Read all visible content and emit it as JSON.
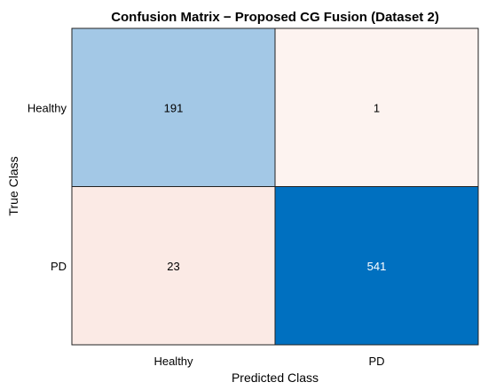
{
  "chart_data": {
    "type": "heatmap",
    "title": "Confusion Matrix − Proposed CG Fusion (Dataset 2)",
    "xlabel": "Predicted Class",
    "ylabel": "True Class",
    "x_categories": [
      "Healthy",
      "PD"
    ],
    "y_categories": [
      "Healthy",
      "PD"
    ],
    "values": [
      [
        191,
        1
      ],
      [
        23,
        541
      ]
    ],
    "cell_colors": [
      [
        "#a3c8e6",
        "#fdf3f0"
      ],
      [
        "#fbeae5",
        "#0070c0"
      ]
    ],
    "cell_text_colors": [
      [
        "#000000",
        "#000000"
      ],
      [
        "#000000",
        "#ffffff"
      ]
    ],
    "grid": false,
    "legend": "none"
  }
}
